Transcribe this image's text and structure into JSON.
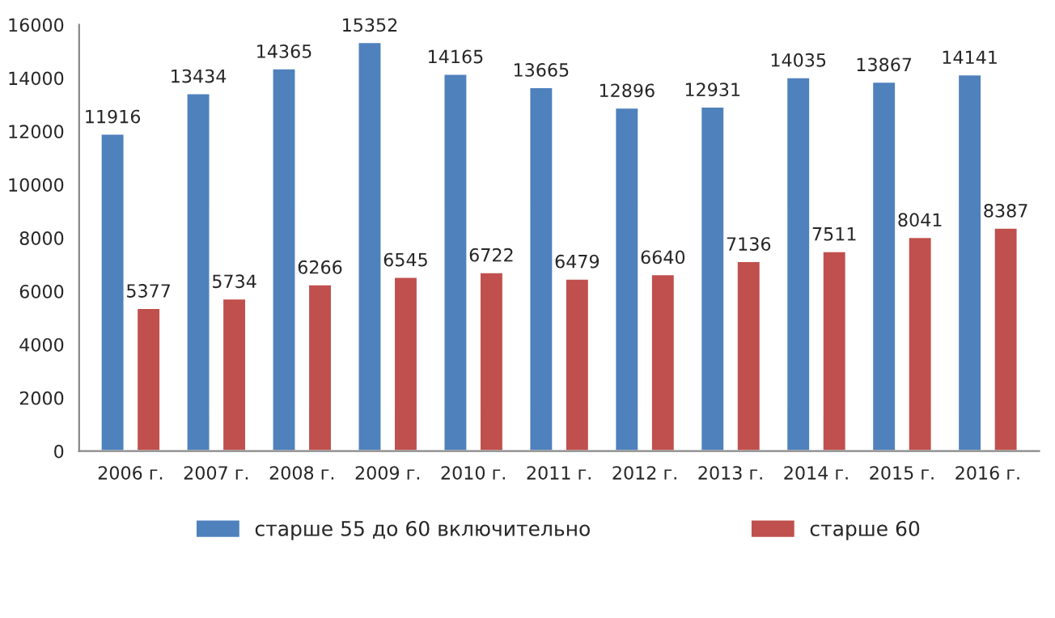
{
  "chart_data": {
    "type": "bar",
    "categories": [
      "2006 г.",
      "2007 г.",
      "2008 г.",
      "2009 г.",
      "2010 г.",
      "2011 г.",
      "2012 г.",
      "2013 г.",
      "2014 г.",
      "2015 г.",
      "2016 г."
    ],
    "series": [
      {
        "name": "старше 55 до 60 включительно",
        "color": "#4f81bd",
        "values": [
          11916,
          13434,
          14365,
          15352,
          14165,
          13665,
          12896,
          12931,
          14035,
          13867,
          14141
        ]
      },
      {
        "name": "старше 60",
        "color": "#c0504d",
        "values": [
          5377,
          5734,
          6266,
          6545,
          6722,
          6479,
          6640,
          7136,
          7511,
          8041,
          8387
        ]
      }
    ],
    "ylim": [
      0,
      16000
    ],
    "yticks": [
      0,
      2000,
      4000,
      6000,
      8000,
      10000,
      12000,
      14000,
      16000
    ],
    "data_labels": true,
    "grid": false,
    "legend": "bottom"
  }
}
